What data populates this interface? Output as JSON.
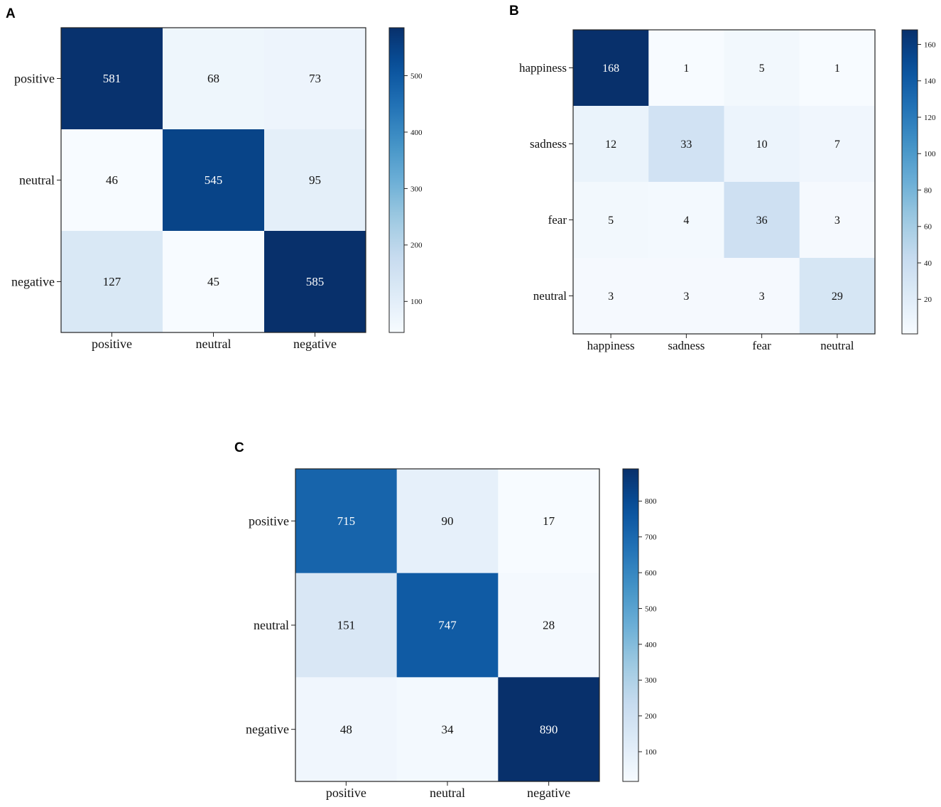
{
  "chart_data": [
    {
      "type": "heatmap",
      "panel_label": "A",
      "row_labels": [
        "positive",
        "neutral",
        "negative"
      ],
      "col_labels": [
        "positive",
        "neutral",
        "negative"
      ],
      "values": [
        [
          581,
          68,
          73
        ],
        [
          46,
          545,
          95
        ],
        [
          127,
          45,
          585
        ]
      ],
      "colorbar": {
        "min": 45,
        "max": 585,
        "ticks": [
          100,
          200,
          300,
          400,
          500
        ]
      },
      "colormap": "Blues"
    },
    {
      "type": "heatmap",
      "panel_label": "B",
      "row_labels": [
        "happiness",
        "sadness",
        "fear",
        "neutral"
      ],
      "col_labels": [
        "happiness",
        "sadness",
        "fear",
        "neutral"
      ],
      "values": [
        [
          168,
          1,
          5,
          1
        ],
        [
          12,
          33,
          10,
          7
        ],
        [
          5,
          4,
          36,
          3
        ],
        [
          3,
          3,
          3,
          29
        ]
      ],
      "colorbar": {
        "min": 1,
        "max": 168,
        "ticks": [
          20,
          40,
          60,
          80,
          100,
          120,
          140,
          160
        ]
      },
      "colormap": "Blues"
    },
    {
      "type": "heatmap",
      "panel_label": "C",
      "row_labels": [
        "positive",
        "neutral",
        "negative"
      ],
      "col_labels": [
        "positive",
        "neutral",
        "negative"
      ],
      "values": [
        [
          715,
          90,
          17
        ],
        [
          151,
          747,
          28
        ],
        [
          48,
          34,
          890
        ]
      ],
      "colorbar": {
        "min": 17,
        "max": 890,
        "ticks": [
          100,
          200,
          300,
          400,
          500,
          600,
          700,
          800
        ]
      },
      "colormap": "Blues"
    }
  ]
}
